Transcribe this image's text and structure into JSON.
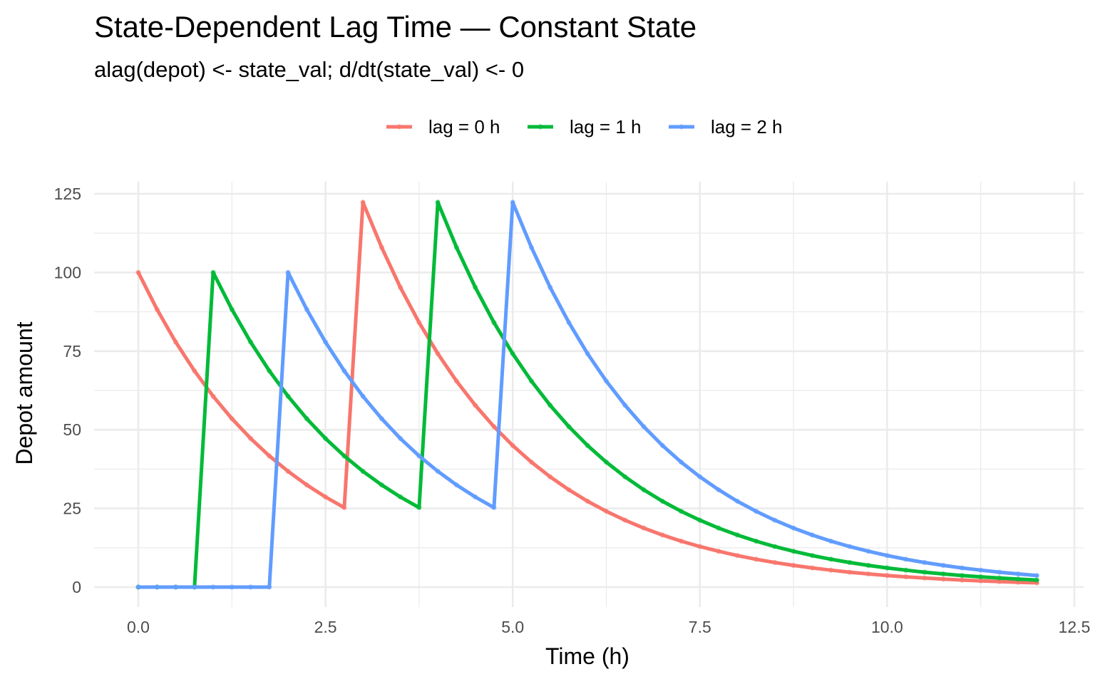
{
  "chart_data": {
    "type": "line",
    "title": "State-Dependent Lag Time — Constant State",
    "subtitle": "alag(depot) <- state_val;  d/dt(state_val) <- 0",
    "xlabel": "Time (h)",
    "ylabel": "Depot amount",
    "xlim": [
      0,
      12.5
    ],
    "ylim": [
      0,
      125
    ],
    "x_ticks": [
      0,
      2.5,
      5,
      7.5,
      10,
      12.5
    ],
    "x_tick_labels": [
      "0.0",
      "2.5",
      "5.0",
      "7.5",
      "10.0",
      "12.5"
    ],
    "y_ticks": [
      0,
      25,
      50,
      75,
      100,
      125
    ],
    "y_tick_labels": [
      "0",
      "25",
      "50",
      "75",
      "100",
      "125"
    ],
    "grid": true,
    "legend_position": "top",
    "markers": true,
    "x": [
      0,
      0.25,
      0.5,
      0.75,
      1,
      1.25,
      1.5,
      1.75,
      2,
      2.25,
      2.5,
      2.75,
      3,
      3.25,
      3.5,
      3.75,
      4,
      4.25,
      4.5,
      4.75,
      5,
      5.25,
      5.5,
      5.75,
      6,
      6.25,
      6.5,
      6.75,
      7,
      7.25,
      7.5,
      7.75,
      8,
      8.25,
      8.5,
      8.75,
      9,
      9.25,
      9.5,
      9.75,
      10,
      10.25,
      10.5,
      10.75,
      11,
      11.25,
      11.5,
      11.75,
      12
    ],
    "series": [
      {
        "name": "lag = 0 h",
        "color": "#F8766D",
        "values": [
          100,
          88.25,
          77.88,
          68.73,
          60.65,
          53.53,
          47.24,
          41.69,
          36.79,
          32.47,
          28.65,
          25.28,
          122.31,
          107.94,
          95.26,
          84.07,
          74.19,
          65.47,
          57.78,
          50.99,
          45.0,
          39.71,
          35.05,
          30.93,
          27.29,
          24.09,
          21.26,
          18.76,
          16.56,
          14.61,
          12.89,
          11.38,
          10.04,
          8.86,
          7.82,
          6.9,
          6.09,
          5.38,
          4.74,
          4.19,
          3.69,
          3.26,
          2.88,
          2.54,
          2.24,
          1.98,
          1.75,
          1.54,
          1.36
        ]
      },
      {
        "name": "lag = 1 h",
        "color": "#00BA38",
        "values": [
          0,
          0,
          0,
          0,
          100,
          88.25,
          77.88,
          68.73,
          60.65,
          53.53,
          47.24,
          41.69,
          36.79,
          32.47,
          28.65,
          25.28,
          122.31,
          107.94,
          95.26,
          84.07,
          74.19,
          65.47,
          57.78,
          50.99,
          45.0,
          39.71,
          35.05,
          30.93,
          27.29,
          24.09,
          21.26,
          18.76,
          16.56,
          14.61,
          12.89,
          11.38,
          10.04,
          8.86,
          7.82,
          6.9,
          6.09,
          5.38,
          4.74,
          4.19,
          3.69,
          3.26,
          2.88,
          2.54,
          2.24
        ]
      },
      {
        "name": "lag = 2 h",
        "color": "#619CFF",
        "values": [
          0,
          0,
          0,
          0,
          0,
          0,
          0,
          0,
          100,
          88.25,
          77.88,
          68.73,
          60.65,
          53.53,
          47.24,
          41.69,
          36.79,
          32.47,
          28.65,
          25.28,
          122.31,
          107.94,
          95.26,
          84.07,
          74.19,
          65.47,
          57.78,
          50.99,
          45.0,
          39.71,
          35.05,
          30.93,
          27.29,
          24.09,
          21.26,
          18.76,
          16.56,
          14.61,
          12.89,
          11.38,
          10.04,
          8.86,
          7.82,
          6.9,
          6.09,
          5.38,
          4.74,
          4.19,
          3.69
        ]
      }
    ]
  }
}
